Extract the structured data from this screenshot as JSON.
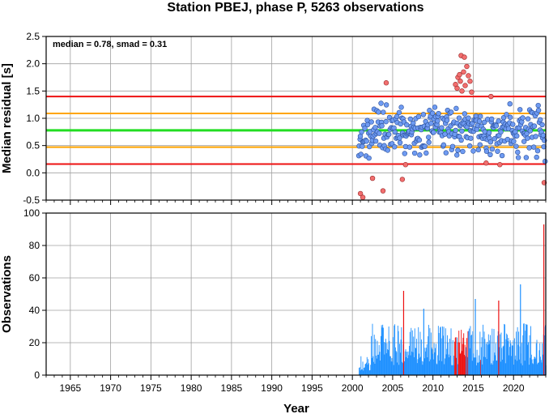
{
  "chart_data": [
    {
      "type": "scatter",
      "title": "Station PBEJ, phase P, 5263 observations",
      "ylabel": "Median residual [s]",
      "annotation": "median = 0.78, smad = 0.31",
      "xlim": [
        1962,
        2024
      ],
      "ylim": [
        -0.5,
        2.5
      ],
      "yticks": [
        "-0.5",
        "0.0",
        "0.5",
        "1.0",
        "1.5",
        "2.0",
        "2.5"
      ],
      "grid": true,
      "reference_lines": [
        {
          "value": 1.4,
          "color": "#ee1111"
        },
        {
          "value": 1.09,
          "color": "#ffa500"
        },
        {
          "value": 0.78,
          "color": "#22dd22"
        },
        {
          "value": 0.47,
          "color": "#ffa500"
        },
        {
          "value": 0.16,
          "color": "#ee1111"
        }
      ],
      "colors": {
        "inlier": "#6f9bf2",
        "outlier": "#f26f6f"
      },
      "outliers": [
        [
          2001.0,
          -0.38
        ],
        [
          2001.3,
          -0.45
        ],
        [
          2002.5,
          -0.1
        ],
        [
          2003.8,
          -0.33
        ],
        [
          2004.2,
          1.65
        ],
        [
          2006.2,
          -0.12
        ],
        [
          2006.6,
          0.15
        ],
        [
          2012.8,
          1.62
        ],
        [
          2013.0,
          1.55
        ],
        [
          2013.1,
          1.75
        ],
        [
          2013.3,
          1.8
        ],
        [
          2013.4,
          1.68
        ],
        [
          2013.5,
          2.15
        ],
        [
          2013.6,
          1.5
        ],
        [
          2013.8,
          1.85
        ],
        [
          2013.9,
          2.12
        ],
        [
          2014.0,
          1.6
        ],
        [
          2014.2,
          1.95
        ],
        [
          2014.4,
          1.78
        ],
        [
          2014.6,
          1.68
        ],
        [
          2014.8,
          1.48
        ],
        [
          2016.6,
          0.18
        ],
        [
          2017.2,
          1.4
        ],
        [
          2018.3,
          0.15
        ],
        [
          2023.8,
          -0.18
        ]
      ],
      "points_note": "about 330 inlier weekly medians between 2000.8 and 2024, concentrated 0.3 to 1.3 s"
    },
    {
      "type": "bar",
      "ylabel": "Observations",
      "xlabel": "Year",
      "xlim": [
        1962,
        2024
      ],
      "ylim": [
        0,
        100
      ],
      "yticks": [
        "0",
        "20",
        "40",
        "60",
        "80",
        "100"
      ],
      "xticks": [
        "1965",
        "1970",
        "1975",
        "1980",
        "1985",
        "1990",
        "1995",
        "2000",
        "2005",
        "2010",
        "2015",
        "2020"
      ],
      "grid": true,
      "colors": {
        "normal": "#1e90ff",
        "flagged": "#ee1111"
      },
      "typical_range": [
        3,
        30
      ],
      "peaks": [
        {
          "x": 2006.3,
          "y": 52,
          "color": "red"
        },
        {
          "x": 2008.8,
          "y": 41,
          "color": "blue"
        },
        {
          "x": 2015.2,
          "y": 47,
          "color": "blue"
        },
        {
          "x": 2018.1,
          "y": 46,
          "color": "red"
        },
        {
          "x": 2020.8,
          "y": 56,
          "color": "blue"
        },
        {
          "x": 2023.7,
          "y": 93,
          "color": "red"
        }
      ],
      "red_cluster": [
        2012.6,
        2014.4
      ]
    }
  ]
}
